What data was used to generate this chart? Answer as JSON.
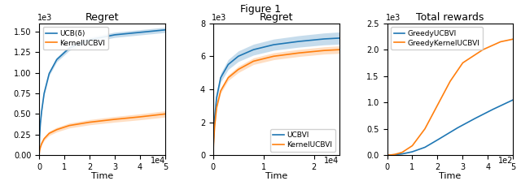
{
  "title": "Figure 1",
  "plots": [
    {
      "title": "Regret",
      "xlabel": "Time",
      "xlim": [
        0,
        50000
      ],
      "xticks": [
        0,
        10000,
        20000,
        30000,
        40000,
        50000
      ],
      "xticklabels": [
        "0",
        "1",
        "2",
        "3",
        "4",
        "5"
      ],
      "x_offset_label": "1e4",
      "ylim": [
        0,
        1600
      ],
      "yticks": [
        0,
        250,
        500,
        750,
        1000,
        1250,
        1500
      ],
      "ytick_labels": [
        "0.00",
        "0.25",
        "0.50",
        "0.75",
        "1.00",
        "1.25",
        "1.50"
      ],
      "y_exp_label": "1e3",
      "legend_loc": "upper left",
      "lines": [
        {
          "label": "UCB(δ)",
          "color": "#1f77b4",
          "x": [
            0,
            200,
            500,
            1000,
            2000,
            4000,
            7000,
            12000,
            20000,
            30000,
            40000,
            50000
          ],
          "y": [
            0,
            220,
            380,
            530,
            750,
            990,
            1160,
            1300,
            1400,
            1460,
            1490,
            1520
          ],
          "std": [
            0,
            15,
            18,
            20,
            22,
            25,
            28,
            30,
            32,
            32,
            32,
            32
          ]
        },
        {
          "label": "KernelUCBVI",
          "color": "#ff7f0e",
          "x": [
            0,
            200,
            500,
            1000,
            2000,
            4000,
            7000,
            12000,
            20000,
            30000,
            40000,
            50000
          ],
          "y": [
            0,
            55,
            95,
            140,
            200,
            265,
            310,
            360,
            400,
            435,
            465,
            500
          ],
          "std": [
            0,
            12,
            15,
            18,
            22,
            26,
            28,
            30,
            32,
            34,
            36,
            38
          ]
        }
      ]
    },
    {
      "title": "Regret",
      "xlabel": "Time",
      "xlim": [
        0,
        25000
      ],
      "xticks": [
        0,
        10000,
        20000
      ],
      "xticklabels": [
        "0",
        "1",
        "2"
      ],
      "x_offset_label": "1e4",
      "ylim": [
        0,
        8000
      ],
      "yticks": [
        0,
        2000,
        4000,
        6000,
        8000
      ],
      "ytick_labels": [
        "0",
        "2",
        "4",
        "6",
        "8"
      ],
      "y_exp_label": "1e3",
      "legend_loc": "lower right",
      "lines": [
        {
          "label": "UCBVI",
          "color": "#1f77b4",
          "x": [
            0,
            100,
            300,
            700,
            1500,
            3000,
            5000,
            8000,
            12000,
            17000,
            22000,
            25000
          ],
          "y": [
            0,
            1000,
            2200,
            3500,
            4700,
            5500,
            6000,
            6400,
            6700,
            6900,
            7050,
            7100
          ],
          "std": [
            0,
            80,
            150,
            200,
            270,
            300,
            320,
            330,
            340,
            350,
            360,
            370
          ]
        },
        {
          "label": "KernelUCBVI",
          "color": "#ff7f0e",
          "x": [
            0,
            100,
            300,
            700,
            1500,
            3000,
            5000,
            8000,
            12000,
            17000,
            22000,
            25000
          ],
          "y": [
            0,
            700,
            1700,
            2900,
            3900,
            4700,
            5200,
            5700,
            6000,
            6200,
            6350,
            6400
          ],
          "std": [
            0,
            50,
            90,
            120,
            150,
            170,
            190,
            200,
            210,
            215,
            220,
            225
          ]
        }
      ]
    },
    {
      "title": "Total rewards",
      "xlabel": "Time",
      "xlim": [
        0,
        500
      ],
      "xticks": [
        0,
        100,
        200,
        300,
        400,
        500
      ],
      "xticklabels": [
        "0",
        "1",
        "2",
        "3",
        "4",
        "5"
      ],
      "x_offset_label": "1e2",
      "ylim": [
        0,
        2500
      ],
      "yticks": [
        0,
        500,
        1000,
        1500,
        2000,
        2500
      ],
      "ytick_labels": [
        "0.0",
        "0.5",
        "1.0",
        "1.5",
        "2.0",
        "2.5"
      ],
      "y_exp_label": "1e3",
      "legend_loc": "upper left",
      "lines": [
        {
          "label": "GreedyUCBVI",
          "color": "#1f77b4",
          "x": [
            0,
            10,
            30,
            60,
            100,
            150,
            200,
            280,
            350,
            420,
            500
          ],
          "y": [
            0,
            2,
            8,
            25,
            65,
            150,
            290,
            520,
            700,
            870,
            1050
          ],
          "std": [
            0,
            0,
            0,
            0,
            0,
            0,
            0,
            0,
            0,
            0,
            0
          ]
        },
        {
          "label": "GreedyKernelUCBVI",
          "color": "#ff7f0e",
          "x": [
            0,
            10,
            30,
            60,
            100,
            150,
            200,
            250,
            300,
            380,
            450,
            500
          ],
          "y": [
            0,
            3,
            15,
            55,
            180,
            500,
            950,
            1400,
            1750,
            2000,
            2150,
            2200
          ],
          "std": [
            0,
            0,
            0,
            0,
            0,
            0,
            0,
            0,
            0,
            0,
            0,
            0
          ]
        }
      ]
    }
  ]
}
